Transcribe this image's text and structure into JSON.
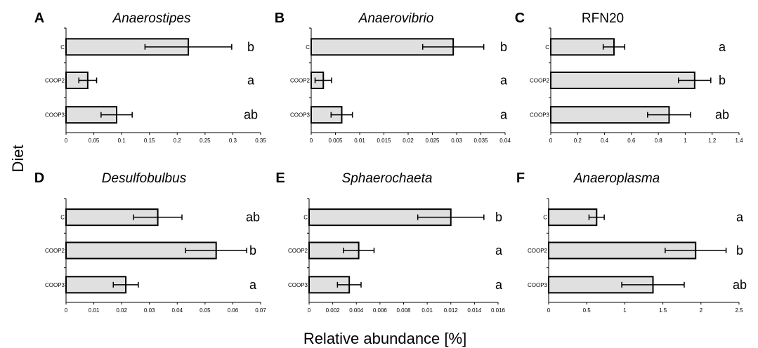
{
  "figure": {
    "y_axis_title": "Diet",
    "x_axis_title": "Relative abundance [%]"
  },
  "chart_data": [
    {
      "type": "bar",
      "orientation": "horizontal",
      "letter": "A",
      "title": "Anaerostipes",
      "title_italic": true,
      "categories": [
        "C",
        "COOP2",
        "COOP3"
      ],
      "values": [
        0.22,
        0.039,
        0.091
      ],
      "errors": [
        0.078,
        0.016,
        0.028
      ],
      "significance": [
        "b",
        "a",
        "ab"
      ],
      "xlim": [
        0,
        0.35
      ],
      "ticks": [
        0,
        0.05,
        0.1,
        0.15,
        0.2,
        0.25,
        0.3,
        0.35
      ],
      "tick_labels": [
        "0",
        "0.05",
        "0.1",
        "0.15",
        "0.2",
        "0.25",
        "0.3",
        "0.35"
      ]
    },
    {
      "type": "bar",
      "orientation": "horizontal",
      "letter": "B",
      "title": "Anaerovibrio",
      "title_italic": true,
      "categories": [
        "C",
        "COOP2",
        "COOP3"
      ],
      "values": [
        0.0293,
        0.0025,
        0.0063
      ],
      "errors": [
        0.0063,
        0.0017,
        0.0022
      ],
      "significance": [
        "b",
        "a",
        "a"
      ],
      "xlim": [
        0,
        0.04
      ],
      "ticks": [
        0,
        0.005,
        0.01,
        0.015,
        0.02,
        0.025,
        0.03,
        0.035,
        0.04
      ],
      "tick_labels": [
        "0",
        "0.005",
        "0.01",
        "0.015",
        "0.02",
        "0.025",
        "0.03",
        "0.035",
        "0.04"
      ]
    },
    {
      "type": "bar",
      "orientation": "horizontal",
      "letter": "C",
      "title": "RFN20",
      "title_italic": false,
      "categories": [
        "C",
        "COOP2",
        "COOP3"
      ],
      "values": [
        0.47,
        1.07,
        0.88
      ],
      "errors": [
        0.08,
        0.12,
        0.16
      ],
      "significance": [
        "a",
        "b",
        "ab"
      ],
      "xlim": [
        0,
        1.4
      ],
      "ticks": [
        0,
        0.2,
        0.4,
        0.6,
        0.8,
        1,
        1.2,
        1.4
      ],
      "tick_labels": [
        "0",
        "0.2",
        "0.4",
        "0.6",
        "0.8",
        "1",
        "1.2",
        "1.4"
      ]
    },
    {
      "type": "bar",
      "orientation": "horizontal",
      "letter": "D",
      "title": "Desulfobulbus",
      "title_italic": true,
      "categories": [
        "C",
        "COOP2",
        "COOP3"
      ],
      "values": [
        0.033,
        0.054,
        0.0215
      ],
      "errors": [
        0.0087,
        0.011,
        0.0045
      ],
      "significance": [
        "ab",
        "b",
        "a"
      ],
      "xlim": [
        0,
        0.07
      ],
      "ticks": [
        0,
        0.01,
        0.02,
        0.03,
        0.04,
        0.05,
        0.06,
        0.07
      ],
      "tick_labels": [
        "0",
        "0.01",
        "0.02",
        "0.03",
        "0.04",
        "0.05",
        "0.06",
        "0.07"
      ]
    },
    {
      "type": "bar",
      "orientation": "horizontal",
      "letter": "E",
      "title": "Sphaerochaeta",
      "title_italic": true,
      "categories": [
        "C",
        "COOP2",
        "COOP3"
      ],
      "values": [
        0.012,
        0.0042,
        0.0034
      ],
      "errors": [
        0.0028,
        0.0013,
        0.001
      ],
      "significance": [
        "b",
        "a",
        "a"
      ],
      "xlim": [
        0,
        0.016
      ],
      "ticks": [
        0,
        0.002,
        0.004,
        0.006,
        0.008,
        0.01,
        0.012,
        0.014,
        0.016
      ],
      "tick_labels": [
        "0",
        "0.002",
        "0.004",
        "0.006",
        "0.008",
        "0.01",
        "0.012",
        "0.014",
        "0.016"
      ]
    },
    {
      "type": "bar",
      "orientation": "horizontal",
      "letter": "F",
      "title": "Anaeroplasma",
      "title_italic": true,
      "categories": [
        "C",
        "COOP2",
        "COOP3"
      ],
      "values": [
        0.63,
        1.93,
        1.37
      ],
      "errors": [
        0.1,
        0.4,
        0.41
      ],
      "significance": [
        "a",
        "b",
        "ab"
      ],
      "xlim": [
        0,
        2.5
      ],
      "ticks": [
        0,
        0.5,
        1,
        1.5,
        2,
        2.5
      ],
      "tick_labels": [
        "0",
        "0.5",
        "1",
        "1.5",
        "2",
        "2.5"
      ]
    }
  ]
}
